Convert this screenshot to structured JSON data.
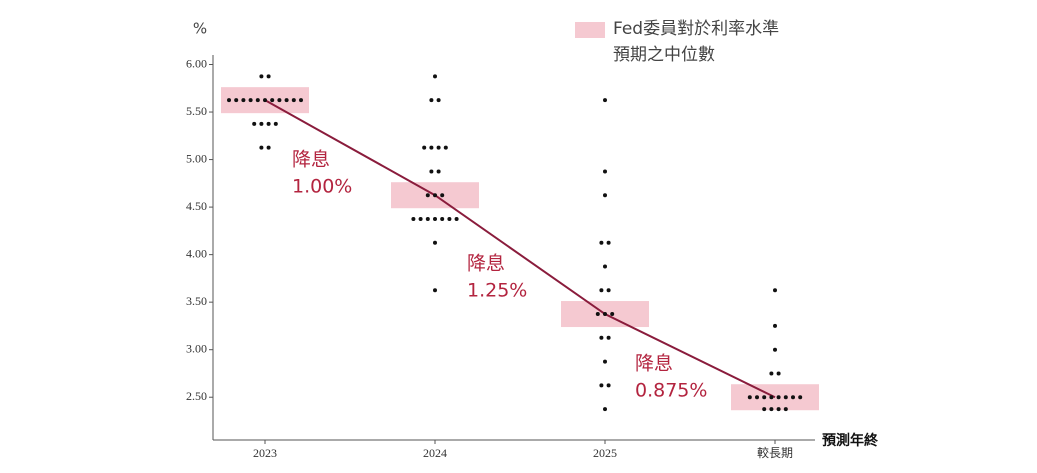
{
  "chart_data": {
    "type": "dot",
    "y_unit": "%",
    "x_label": "預測年終",
    "legend_lines": [
      "Fed委員對於利率水準",
      "預期之中位數"
    ],
    "categories": [
      "2023",
      "2024",
      "2025",
      "較長期"
    ],
    "dots": [
      [
        5.875,
        5.875,
        5.625,
        5.625,
        5.625,
        5.625,
        5.625,
        5.625,
        5.625,
        5.625,
        5.625,
        5.625,
        5.625,
        5.375,
        5.375,
        5.375,
        5.375,
        5.125,
        5.125
      ],
      [
        5.875,
        5.625,
        5.625,
        5.125,
        5.125,
        5.125,
        5.125,
        4.875,
        4.875,
        4.625,
        4.625,
        4.625,
        4.375,
        4.375,
        4.375,
        4.375,
        4.375,
        4.375,
        4.375,
        4.125,
        3.625
      ],
      [
        5.625,
        4.875,
        4.625,
        4.125,
        4.125,
        3.875,
        3.625,
        3.625,
        3.375,
        3.375,
        3.375,
        3.125,
        3.125,
        2.875,
        2.625,
        2.625,
        2.375
      ],
      [
        3.625,
        3.25,
        3.0,
        2.75,
        2.75,
        2.5,
        2.5,
        2.5,
        2.5,
        2.5,
        2.5,
        2.5,
        2.5,
        2.375,
        2.375,
        2.375,
        2.375
      ]
    ],
    "medians": [
      5.625,
      4.625,
      3.375,
      2.5
    ],
    "annotations": [
      {
        "title": "降息",
        "text": "1.00%"
      },
      {
        "title": "降息",
        "text": "1.25%"
      },
      {
        "title": "降息",
        "text": "0.875%"
      }
    ],
    "dot_color": "#111111",
    "median_box_color": "#f5c9d1",
    "line_color": "#8a1c3c",
    "annotation_color": "#b3243f",
    "ylim": [
      2.05,
      6.1
    ],
    "yticks": [
      {
        "value": 2.5,
        "label": "2.50"
      },
      {
        "value": 3,
        "label": "3.00"
      },
      {
        "value": 3.5,
        "label": "3.50"
      },
      {
        "value": 4,
        "label": "4.00"
      },
      {
        "value": 4.5,
        "label": "4.50"
      },
      {
        "value": 5,
        "label": "5.00"
      },
      {
        "value": 5.5,
        "label": "5.50"
      },
      {
        "value": 6,
        "label": "6.00"
      }
    ]
  }
}
